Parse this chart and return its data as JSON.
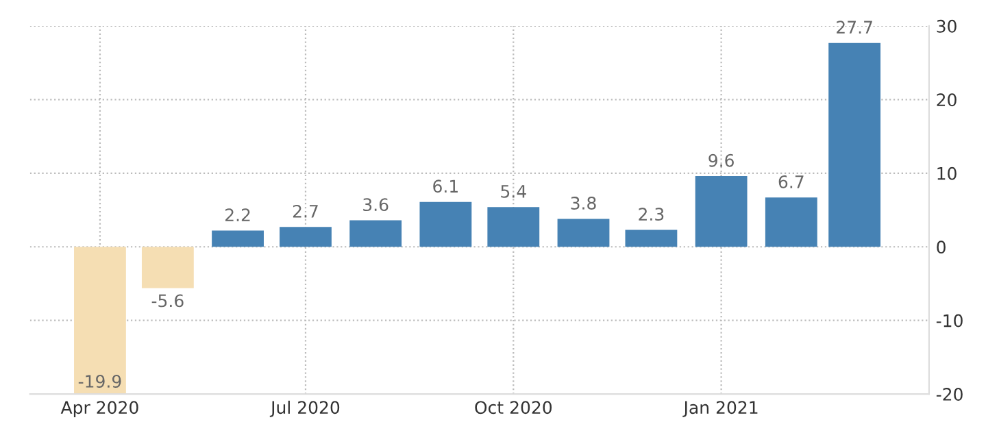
{
  "chart_data": {
    "type": "bar",
    "x": [
      "2020-04-01",
      "2020-05-01",
      "2020-06-01",
      "2020-07-01",
      "2020-08-01",
      "2020-09-01",
      "2020-10-01",
      "2020-11-01",
      "2020-12-01",
      "2021-01-01",
      "2021-02-01",
      "2021-03-01"
    ],
    "values": [
      -19.9,
      -5.6,
      2.2,
      2.7,
      3.6,
      6.1,
      5.4,
      3.8,
      2.3,
      9.6,
      6.7,
      27.7
    ],
    "colors": [
      "#f5deb3",
      "#f5deb3",
      "#4682b4",
      "#4682b4",
      "#4682b4",
      "#4682b4",
      "#4682b4",
      "#4682b4",
      "#4682b4",
      "#4682b4",
      "#4682b4",
      "#4682b4"
    ],
    "data_labels": true,
    "xlim": [
      "2020-03-01",
      "2021-04-03"
    ],
    "xticks": [
      {
        "value": "2020-04-01",
        "label": "Apr 2020"
      },
      {
        "value": "2020-07-01",
        "label": "Jul 2020"
      },
      {
        "value": "2020-10-01",
        "label": "Oct 2020"
      },
      {
        "value": "2021-01-01",
        "label": "Jan 2021"
      }
    ],
    "ylim": [
      -20,
      30
    ],
    "yticks": [
      -20,
      -10,
      0,
      10,
      20,
      30
    ],
    "grid": true
  }
}
